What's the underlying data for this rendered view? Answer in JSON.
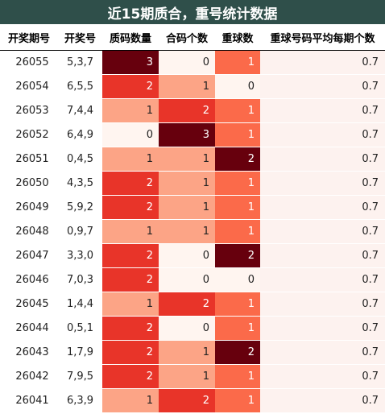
{
  "title": "近15期质合，重号统计数据",
  "columns": [
    "开奖期号",
    "开奖号",
    "质码数量",
    "合码个数",
    "重球数",
    "重球号码平均每期个数"
  ],
  "rows": [
    {
      "issue": "26055",
      "nums": "5,3,7",
      "prime": 3,
      "composite": 0,
      "repeat": 1,
      "avg": "0.7"
    },
    {
      "issue": "26054",
      "nums": "6,5,5",
      "prime": 2,
      "composite": 1,
      "repeat": 0,
      "avg": "0.7"
    },
    {
      "issue": "26053",
      "nums": "7,4,4",
      "prime": 1,
      "composite": 2,
      "repeat": 1,
      "avg": "0.7"
    },
    {
      "issue": "26052",
      "nums": "6,4,9",
      "prime": 0,
      "composite": 3,
      "repeat": 1,
      "avg": "0.7"
    },
    {
      "issue": "26051",
      "nums": "0,4,5",
      "prime": 1,
      "composite": 1,
      "repeat": 2,
      "avg": "0.7"
    },
    {
      "issue": "26050",
      "nums": "4,3,5",
      "prime": 2,
      "composite": 1,
      "repeat": 1,
      "avg": "0.7"
    },
    {
      "issue": "26049",
      "nums": "5,9,2",
      "prime": 2,
      "composite": 1,
      "repeat": 1,
      "avg": "0.7"
    },
    {
      "issue": "26048",
      "nums": "0,9,7",
      "prime": 1,
      "composite": 1,
      "repeat": 1,
      "avg": "0.7"
    },
    {
      "issue": "26047",
      "nums": "3,3,0",
      "prime": 2,
      "composite": 0,
      "repeat": 2,
      "avg": "0.7"
    },
    {
      "issue": "26046",
      "nums": "7,0,3",
      "prime": 2,
      "composite": 0,
      "repeat": 0,
      "avg": "0.7"
    },
    {
      "issue": "26045",
      "nums": "1,4,4",
      "prime": 1,
      "composite": 2,
      "repeat": 1,
      "avg": "0.7"
    },
    {
      "issue": "26044",
      "nums": "0,5,1",
      "prime": 2,
      "composite": 0,
      "repeat": 1,
      "avg": "0.7"
    },
    {
      "issue": "26043",
      "nums": "1,7,9",
      "prime": 2,
      "composite": 1,
      "repeat": 2,
      "avg": "0.7"
    },
    {
      "issue": "26042",
      "nums": "7,9,5",
      "prime": 2,
      "composite": 1,
      "repeat": 1,
      "avg": "0.7"
    },
    {
      "issue": "26041",
      "nums": "6,3,9",
      "prime": 1,
      "composite": 2,
      "repeat": 1,
      "avg": "0.7"
    }
  ]
}
